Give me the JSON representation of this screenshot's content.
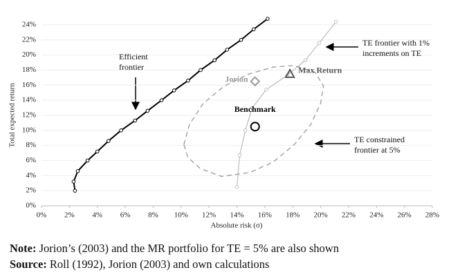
{
  "chart_data": {
    "type": "scatter",
    "xlabel": "Absolute risk (σ)",
    "ylabel": "Total expected return",
    "xlim": [
      0,
      28
    ],
    "ylim": [
      0,
      25
    ],
    "xticks": [
      {
        "value": 0,
        "label": "0%"
      },
      {
        "value": 2,
        "label": "2%"
      },
      {
        "value": 4,
        "label": "4%"
      },
      {
        "value": 6,
        "label": "6%"
      },
      {
        "value": 8,
        "label": "8%"
      },
      {
        "value": 10,
        "label": "10%"
      },
      {
        "value": 12,
        "label": "12%"
      },
      {
        "value": 14,
        "label": "14%"
      },
      {
        "value": 16,
        "label": "16%"
      },
      {
        "value": 18,
        "label": "18%"
      },
      {
        "value": 20,
        "label": "20%"
      },
      {
        "value": 22,
        "label": "22%"
      },
      {
        "value": 24,
        "label": "24%"
      },
      {
        "value": 26,
        "label": "26%"
      },
      {
        "value": 28,
        "label": "28%"
      }
    ],
    "yticks": [
      {
        "value": 0,
        "label": "0%"
      },
      {
        "value": 2,
        "label": "2%"
      },
      {
        "value": 4,
        "label": "4%"
      },
      {
        "value": 6,
        "label": "6%"
      },
      {
        "value": 8,
        "label": "8%"
      },
      {
        "value": 10,
        "label": "10%"
      },
      {
        "value": 12,
        "label": "12%"
      },
      {
        "value": 14,
        "label": "14%"
      },
      {
        "value": 16,
        "label": "16%"
      },
      {
        "value": 18,
        "label": "18%"
      },
      {
        "value": 20,
        "label": "20%"
      },
      {
        "value": 22,
        "label": "22%"
      },
      {
        "value": 24,
        "label": "24%"
      }
    ],
    "grid": true,
    "series": [
      {
        "name": "Efficient frontier",
        "color": "#000000",
        "dashed": false,
        "markers": true,
        "x": [
          2.4,
          2.3,
          2.6,
          3.3,
          4,
          4.8,
          5.7,
          6.7,
          7.6,
          8.6,
          9.5,
          10.5,
          11.4,
          12.4,
          13.3,
          14.3,
          15.2,
          16.2
        ],
        "values": [
          2,
          3.2,
          4.6,
          6,
          7.2,
          8.6,
          10,
          11.3,
          12.6,
          14,
          15.3,
          16.6,
          18,
          19.3,
          20.7,
          22,
          23.4,
          24.8
        ]
      },
      {
        "name": "TE frontier with 1% increments on TE",
        "color": "#c0c0c0",
        "dashed": false,
        "markers": true,
        "x": [
          14,
          14.2,
          14.6,
          15.1,
          16.1,
          17.6,
          18.9,
          19.9,
          21.1
        ],
        "values": [
          2.5,
          6.7,
          10,
          13,
          15.4,
          17.3,
          19.3,
          21.6,
          24.4
        ]
      },
      {
        "name": "TE constrained frontier at 5%",
        "color": "#999999",
        "dashed": true,
        "markers": false,
        "x": [
          10.2,
          10.6,
          11.6,
          13.1,
          14.9,
          16.6,
          18.1,
          19.6,
          20.2,
          20,
          19.3,
          18.1,
          16.6,
          14.9,
          12.9,
          11.4,
          10.5,
          10.2
        ],
        "values": [
          8.1,
          10.8,
          13.6,
          15.9,
          17.5,
          18.4,
          18.6,
          17.7,
          15.9,
          13.6,
          10.8,
          8.1,
          5.8,
          4.4,
          3.9,
          4.9,
          6.4,
          8.1
        ]
      }
    ],
    "points": [
      {
        "name": "Jorion",
        "x": 15.3,
        "y": 16.5,
        "marker": "diamond",
        "color": "#999999"
      },
      {
        "name": "Max Return",
        "x": 17.8,
        "y": 17.5,
        "marker": "triangle",
        "color": "#555555"
      },
      {
        "name": "Benchmark",
        "x": 15.3,
        "y": 10.5,
        "marker": "circle",
        "color": "#000000"
      }
    ]
  },
  "notes": [
    {
      "label": "Note:",
      "text": "Jorion’s (2003) and the MR portfolio for TE = 5% are also shown"
    },
    {
      "label": "Source:",
      "text": "Roll (1992), Jorion (2003) and own calculations"
    }
  ]
}
